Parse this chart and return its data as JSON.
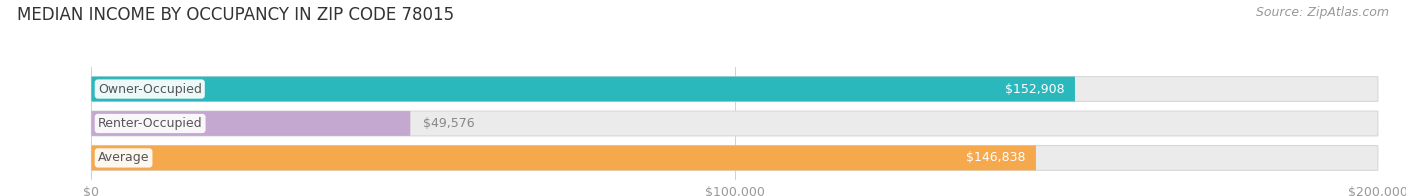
{
  "title": "MEDIAN INCOME BY OCCUPANCY IN ZIP CODE 78015",
  "source": "Source: ZipAtlas.com",
  "categories": [
    "Owner-Occupied",
    "Renter-Occupied",
    "Average"
  ],
  "values": [
    152908,
    49576,
    146838
  ],
  "bar_colors": [
    "#2ab8bc",
    "#c5a8d0",
    "#f5a84c"
  ],
  "bar_bg_color": "#ebebeb",
  "bar_border_color": "#d8d8d8",
  "value_labels": [
    "$152,908",
    "$49,576",
    "$146,838"
  ],
  "value_label_inside": [
    true,
    false,
    true
  ],
  "value_label_color_inside": "#ffffff",
  "value_label_color_outside": "#888888",
  "xlim": [
    0,
    200000
  ],
  "xtick_labels": [
    "$0",
    "$100,000",
    "$200,000"
  ],
  "xtick_values": [
    0,
    100000,
    200000
  ],
  "title_fontsize": 12,
  "source_fontsize": 9,
  "label_fontsize": 9,
  "tick_fontsize": 9,
  "bar_height": 0.72,
  "bar_gap": 0.18,
  "figure_bg": "#ffffff",
  "axes_bg": "#ffffff",
  "label_color": "#555555",
  "tick_color": "#999999",
  "title_color": "#333333",
  "source_color": "#999999",
  "grid_color": "#d0d0d0"
}
